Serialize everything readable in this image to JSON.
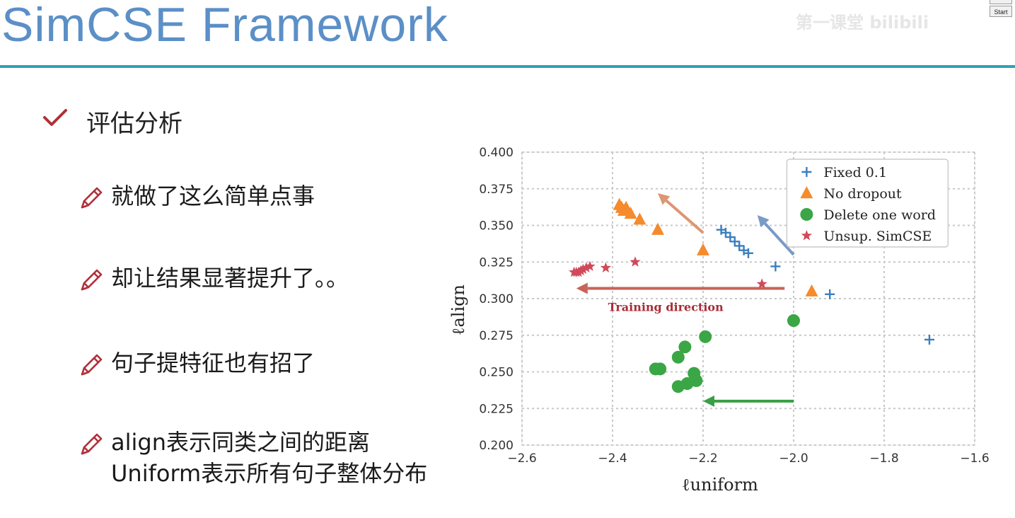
{
  "slide": {
    "title": "SimCSE Framework",
    "watermark": "第一课堂 bilibili",
    "start_button": "Start",
    "heading": "评估分析",
    "bullets": [
      "就做了这么简单点事",
      "却让结果显著提升了。。",
      "句子提特征也有招了",
      "align表示同类之间的距离",
      "Uniform表示所有句子整体分布"
    ]
  },
  "chart_data": {
    "type": "scatter",
    "xlabel": "ℓuniform",
    "ylabel": "ℓalign",
    "xlim": [
      -2.6,
      -1.6
    ],
    "ylim": [
      0.2,
      0.4
    ],
    "xticks": [
      "−2.6",
      "−2.4",
      "−2.2",
      "−2.0",
      "−1.8",
      "−1.6"
    ],
    "yticks": [
      "0.200",
      "0.225",
      "0.250",
      "0.275",
      "0.300",
      "0.325",
      "0.350",
      "0.375",
      "0.400"
    ],
    "grid": true,
    "legend_position": "top-right",
    "annotation": "Training direction",
    "series": [
      {
        "name": "Fixed 0.1",
        "marker": "plus",
        "color": "#3a7ebf",
        "points": [
          [
            -2.16,
            0.347
          ],
          [
            -2.15,
            0.345
          ],
          [
            -2.14,
            0.342
          ],
          [
            -2.13,
            0.339
          ],
          [
            -2.12,
            0.336
          ],
          [
            -2.11,
            0.333
          ],
          [
            -2.1,
            0.331
          ],
          [
            -2.04,
            0.322
          ],
          [
            -1.92,
            0.303
          ],
          [
            -1.7,
            0.272
          ]
        ]
      },
      {
        "name": "No dropout",
        "marker": "triangle",
        "color": "#f58b2c",
        "points": [
          [
            -2.385,
            0.364
          ],
          [
            -2.38,
            0.362
          ],
          [
            -2.375,
            0.36
          ],
          [
            -2.37,
            0.362
          ],
          [
            -2.36,
            0.358
          ],
          [
            -2.34,
            0.354
          ],
          [
            -2.3,
            0.347
          ],
          [
            -2.2,
            0.333
          ],
          [
            -1.96,
            0.305
          ]
        ]
      },
      {
        "name": "Delete one word",
        "marker": "circle",
        "color": "#3aa645",
        "points": [
          [
            -2.0,
            0.285
          ],
          [
            -2.195,
            0.274
          ],
          [
            -2.24,
            0.267
          ],
          [
            -2.255,
            0.26
          ],
          [
            -2.305,
            0.252
          ],
          [
            -2.295,
            0.252
          ],
          [
            -2.22,
            0.249
          ],
          [
            -2.215,
            0.244
          ],
          [
            -2.235,
            0.242
          ],
          [
            -2.255,
            0.24
          ]
        ]
      },
      {
        "name": "Unsup. SimCSE",
        "marker": "star",
        "color": "#d04a5b",
        "points": [
          [
            -2.485,
            0.318
          ],
          [
            -2.48,
            0.318
          ],
          [
            -2.475,
            0.318
          ],
          [
            -2.47,
            0.319
          ],
          [
            -2.465,
            0.32
          ],
          [
            -2.458,
            0.321
          ],
          [
            -2.45,
            0.322
          ],
          [
            -2.415,
            0.321
          ],
          [
            -2.35,
            0.325
          ],
          [
            -2.07,
            0.31
          ]
        ]
      }
    ],
    "arrows": [
      {
        "color": "#c55b4f",
        "from": [
          -2.02,
          0.307
        ],
        "to": [
          -2.48,
          0.307
        ],
        "opacity": 0.95
      },
      {
        "color": "#d98b63",
        "from": [
          -2.2,
          0.345
        ],
        "to": [
          -2.3,
          0.372
        ],
        "opacity": 0.9
      },
      {
        "color": "#6b8fc2",
        "from": [
          -2.0,
          0.33
        ],
        "to": [
          -2.08,
          0.357
        ],
        "opacity": 0.9
      },
      {
        "color": "#2f9a3a",
        "from": [
          -2.0,
          0.23
        ],
        "to": [
          -2.2,
          0.23
        ],
        "opacity": 0.95
      }
    ]
  }
}
